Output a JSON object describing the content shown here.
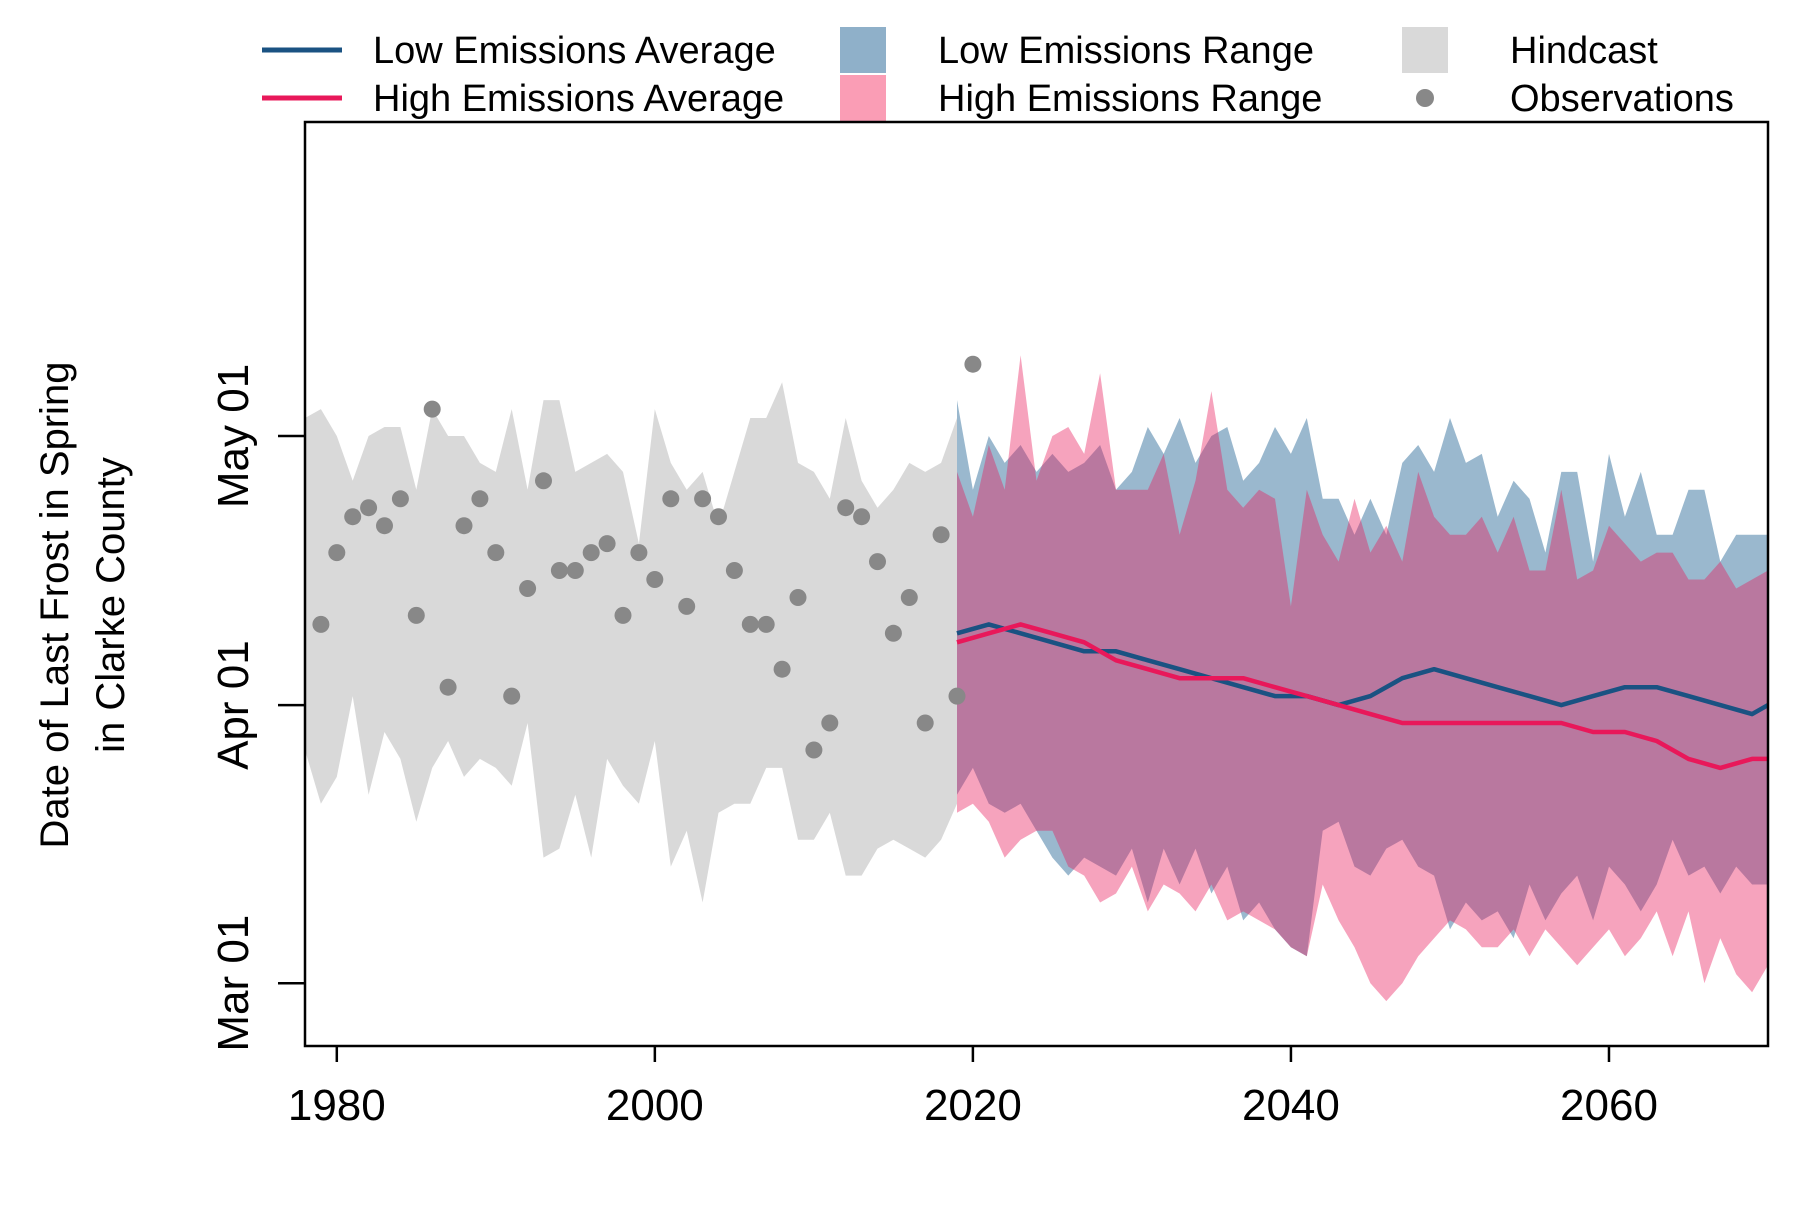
{
  "chart_data": {
    "type": "line",
    "title": "",
    "xlabel": "",
    "ylabel": "Date of Last Frost in Spring\nin Clarke County",
    "xlim": [
      1978,
      2070
    ],
    "ylim": [
      "Feb 22",
      "Jun 05"
    ],
    "x_ticks": [
      1980,
      2000,
      2020,
      2040,
      2060
    ],
    "y_ticks": [
      {
        "label": "Mar 01",
        "day": 60
      },
      {
        "label": "Apr 01",
        "day": 91
      },
      {
        "label": "May 01",
        "day": 121
      }
    ],
    "legend": [
      {
        "label": "Low Emissions Average",
        "kind": "line",
        "color": "#1a5282"
      },
      {
        "label": "High Emissions Average",
        "kind": "line",
        "color": "#e8185a"
      },
      {
        "label": "Low Emissions Range",
        "kind": "area",
        "color": "#8fb0c9"
      },
      {
        "label": "High Emissions Range",
        "kind": "area",
        "color": "#fa9db5"
      },
      {
        "label": "Hindcast",
        "kind": "area",
        "color": "#d9d9d9"
      },
      {
        "label": "Observations",
        "kind": "point",
        "color": "#888888"
      }
    ],
    "legend_position": "top",
    "observations": {
      "x": [
        1979,
        1980,
        1981,
        1982,
        1983,
        1984,
        1985,
        1986,
        1987,
        1988,
        1989,
        1990,
        1991,
        1992,
        1993,
        1994,
        1995,
        1996,
        1997,
        1998,
        1999,
        2000,
        2001,
        2002,
        2003,
        2004,
        2005,
        2006,
        2007,
        2008,
        2009,
        2010,
        2011,
        2012,
        2013,
        2014,
        2015,
        2016,
        2017,
        2018,
        2019,
        2020
      ],
      "y": [
        "Apr 10",
        "Apr 18",
        "Apr 22",
        "Apr 23",
        "Apr 21",
        "Apr 24",
        "Apr 11",
        "May 04",
        "Apr 03",
        "Apr 21",
        "Apr 24",
        "Apr 18",
        "Apr 02",
        "Apr 14",
        "Apr 26",
        "Apr 16",
        "Apr 16",
        "Apr 18",
        "Apr 19",
        "Apr 11",
        "Apr 18",
        "Apr 15",
        "Apr 24",
        "Apr 12",
        "Apr 24",
        "Apr 22",
        "Apr 16",
        "Apr 10",
        "Apr 10",
        "Apr 05",
        "Apr 13",
        "Mar 27",
        "Mar 30",
        "Apr 23",
        "Apr 22",
        "Apr 17",
        "Apr 09",
        "Apr 13",
        "Mar 30",
        "Apr 20",
        "Apr 02",
        "May 09"
      ]
    },
    "hindcast_range": {
      "x": [
        1978,
        1979,
        1980,
        1981,
        1982,
        1983,
        1984,
        1985,
        1986,
        1987,
        1988,
        1989,
        1990,
        1991,
        1992,
        1993,
        1994,
        1995,
        1996,
        1997,
        1998,
        1999,
        2000,
        2001,
        2002,
        2003,
        2004,
        2005,
        2006,
        2007,
        2008,
        2009,
        2010,
        2011,
        2012,
        2013,
        2014,
        2015,
        2016,
        2017,
        2018,
        2019
      ],
      "upper": [
        "May 03",
        "May 04",
        "May 01",
        "Apr 26",
        "May 01",
        "May 02",
        "May 02",
        "Apr 25",
        "May 04",
        "May 01",
        "May 01",
        "Apr 28",
        "Apr 27",
        "May 04",
        "Apr 25",
        "May 05",
        "May 05",
        "Apr 27",
        "Apr 28",
        "Apr 29",
        "Apr 27",
        "Apr 19",
        "May 04",
        "Apr 28",
        "Apr 25",
        "Apr 27",
        "Apr 21",
        "Apr 27",
        "May 03",
        "May 03",
        "May 07",
        "Apr 28",
        "Apr 27",
        "Apr 24",
        "May 03",
        "Apr 26",
        "Apr 23",
        "Apr 25",
        "Apr 28",
        "Apr 27",
        "Apr 28",
        "May 03"
      ],
      "lower": [
        "Mar 27",
        "Mar 21",
        "Mar 24",
        "Apr 02",
        "Mar 22",
        "Mar 29",
        "Mar 26",
        "Mar 19",
        "Mar 25",
        "Mar 28",
        "Mar 24",
        "Mar 26",
        "Mar 25",
        "Mar 23",
        "Mar 30",
        "Mar 15",
        "Mar 16",
        "Mar 22",
        "Mar 15",
        "Mar 26",
        "Mar 23",
        "Mar 21",
        "Mar 28",
        "Mar 14",
        "Mar 18",
        "Mar 10",
        "Mar 20",
        "Mar 21",
        "Mar 21",
        "Mar 25",
        "Mar 25",
        "Mar 17",
        "Mar 17",
        "Mar 20",
        "Mar 13",
        "Mar 13",
        "Mar 16",
        "Mar 17",
        "Mar 16",
        "Mar 15",
        "Mar 17",
        "Mar 21"
      ]
    },
    "series": [
      {
        "name": "Low Emissions Average",
        "color": "#1a5282",
        "x": [
          2019,
          2021,
          2023,
          2025,
          2027,
          2029,
          2031,
          2033,
          2035,
          2037,
          2039,
          2041,
          2043,
          2045,
          2047,
          2049,
          2051,
          2053,
          2055,
          2057,
          2059,
          2061,
          2063,
          2065,
          2067,
          2069,
          2070
        ],
        "y": [
          "Apr 09",
          "Apr 10",
          "Apr 09",
          "Apr 08",
          "Apr 07",
          "Apr 07",
          "Apr 06",
          "Apr 05",
          "Apr 04",
          "Apr 03",
          "Apr 02",
          "Apr 02",
          "Apr 01",
          "Apr 02",
          "Apr 04",
          "Apr 05",
          "Apr 04",
          "Apr 03",
          "Apr 02",
          "Apr 01",
          "Apr 02",
          "Apr 03",
          "Apr 03",
          "Apr 02",
          "Apr 01",
          "Mar 31",
          "Apr 01"
        ]
      },
      {
        "name": "High Emissions Average",
        "color": "#e8185a",
        "x": [
          2019,
          2021,
          2023,
          2025,
          2027,
          2029,
          2031,
          2033,
          2035,
          2037,
          2039,
          2041,
          2043,
          2045,
          2047,
          2049,
          2051,
          2053,
          2055,
          2057,
          2059,
          2061,
          2063,
          2065,
          2067,
          2069,
          2070
        ],
        "y": [
          "Apr 08",
          "Apr 09",
          "Apr 10",
          "Apr 09",
          "Apr 08",
          "Apr 06",
          "Apr 05",
          "Apr 04",
          "Apr 04",
          "Apr 04",
          "Apr 03",
          "Apr 02",
          "Apr 01",
          "Mar 31",
          "Mar 30",
          "Mar 30",
          "Mar 30",
          "Mar 30",
          "Mar 30",
          "Mar 30",
          "Mar 29",
          "Mar 29",
          "Mar 28",
          "Mar 26",
          "Mar 25",
          "Mar 26",
          "Mar 26"
        ]
      }
    ],
    "low_range": {
      "x": [
        2019,
        2020,
        2021,
        2022,
        2023,
        2024,
        2025,
        2026,
        2027,
        2028,
        2029,
        2030,
        2031,
        2032,
        2033,
        2034,
        2035,
        2036,
        2037,
        2038,
        2039,
        2040,
        2041,
        2042,
        2043,
        2044,
        2045,
        2046,
        2047,
        2048,
        2049,
        2050,
        2051,
        2052,
        2053,
        2054,
        2055,
        2056,
        2057,
        2058,
        2059,
        2060,
        2061,
        2062,
        2063,
        2064,
        2065,
        2066,
        2067,
        2068,
        2069,
        2070
      ],
      "upper": [
        "May 05",
        "Apr 25",
        "May 01",
        "Apr 28",
        "Apr 30",
        "Apr 27",
        "Apr 29",
        "Apr 27",
        "Apr 28",
        "Apr 30",
        "Apr 25",
        "Apr 27",
        "May 02",
        "Apr 29",
        "May 03",
        "Apr 28",
        "May 01",
        "May 02",
        "Apr 26",
        "Apr 28",
        "May 02",
        "Apr 29",
        "May 03",
        "Apr 24",
        "Apr 24",
        "Apr 20",
        "Apr 24",
        "Apr 20",
        "Apr 28",
        "Apr 30",
        "Apr 27",
        "May 03",
        "Apr 28",
        "Apr 29",
        "Apr 22",
        "Apr 26",
        "Apr 24",
        "Apr 18",
        "Apr 27",
        "Apr 27",
        "Apr 17",
        "Apr 29",
        "Apr 22",
        "Apr 27",
        "Apr 20",
        "Apr 20",
        "Apr 25",
        "Apr 25",
        "Apr 17",
        "Apr 20",
        "Apr 20",
        "Apr 20"
      ],
      "lower": [
        "Mar 22",
        "Mar 25",
        "Mar 21",
        "Mar 20",
        "Mar 21",
        "Mar 18",
        "Mar 15",
        "Mar 13",
        "Mar 15",
        "Mar 14",
        "Mar 13",
        "Mar 16",
        "Mar 10",
        "Mar 16",
        "Mar 12",
        "Mar 16",
        "Mar 11",
        "Mar 14",
        "Mar 08",
        "Mar 10",
        "Mar 07",
        "Mar 05",
        "Mar 04",
        "Mar 18",
        "Mar 19",
        "Mar 14",
        "Mar 13",
        "Mar 16",
        "Mar 17",
        "Mar 14",
        "Mar 13",
        "Mar 07",
        "Mar 10",
        "Mar 08",
        "Mar 09",
        "Mar 06",
        "Mar 12",
        "Mar 08",
        "Mar 11",
        "Mar 13",
        "Mar 08",
        "Mar 14",
        "Mar 12",
        "Mar 09",
        "Mar 12",
        "Mar 17",
        "Mar 13",
        "Mar 14",
        "Mar 11",
        "Mar 14",
        "Mar 12",
        "Mar 12"
      ]
    },
    "high_range": {
      "x": [
        2019,
        2020,
        2021,
        2022,
        2023,
        2024,
        2025,
        2026,
        2027,
        2028,
        2029,
        2030,
        2031,
        2032,
        2033,
        2034,
        2035,
        2036,
        2037,
        2038,
        2039,
        2040,
        2041,
        2042,
        2043,
        2044,
        2045,
        2046,
        2047,
        2048,
        2049,
        2050,
        2051,
        2052,
        2053,
        2054,
        2055,
        2056,
        2057,
        2058,
        2059,
        2060,
        2061,
        2062,
        2063,
        2064,
        2065,
        2066,
        2067,
        2068,
        2069,
        2070
      ],
      "upper": [
        "Apr 27",
        "Apr 22",
        "Apr 30",
        "Apr 25",
        "May 10",
        "Apr 26",
        "May 01",
        "May 02",
        "Apr 29",
        "May 08",
        "Apr 25",
        "Apr 25",
        "Apr 25",
        "Apr 29",
        "Apr 20",
        "Apr 26",
        "May 06",
        "Apr 25",
        "Apr 23",
        "Apr 25",
        "Apr 24",
        "Apr 12",
        "Apr 25",
        "Apr 20",
        "Apr 17",
        "Apr 24",
        "Apr 18",
        "Apr 21",
        "Apr 17",
        "Apr 27",
        "Apr 22",
        "Apr 20",
        "Apr 20",
        "Apr 22",
        "Apr 18",
        "Apr 22",
        "Apr 16",
        "Apr 16",
        "Apr 25",
        "Apr 15",
        "Apr 16",
        "Apr 21",
        "Apr 19",
        "Apr 17",
        "Apr 18",
        "Apr 18",
        "Apr 15",
        "Apr 15",
        "Apr 17",
        "Apr 14",
        "Apr 15",
        "Apr 16"
      ],
      "lower": [
        "Mar 20",
        "Mar 21",
        "Mar 19",
        "Mar 15",
        "Mar 17",
        "Mar 18",
        "Mar 18",
        "Mar 14",
        "Mar 13",
        "Mar 10",
        "Mar 11",
        "Mar 14",
        "Mar 09",
        "Mar 12",
        "Mar 11",
        "Mar 09",
        "Mar 12",
        "Mar 08",
        "Mar 09",
        "Mar 08",
        "Mar 07",
        "Mar 05",
        "Mar 04",
        "Mar 12",
        "Mar 08",
        "Mar 05",
        "Mar 01",
        "Feb 27",
        "Mar 01",
        "Mar 04",
        "Mar 06",
        "Mar 08",
        "Mar 07",
        "Mar 05",
        "Mar 05",
        "Mar 07",
        "Mar 04",
        "Mar 07",
        "Mar 05",
        "Mar 03",
        "Mar 05",
        "Mar 07",
        "Mar 04",
        "Mar 06",
        "Mar 09",
        "Mar 04",
        "Mar 09",
        "Mar 01",
        "Mar 06",
        "Mar 02",
        "Feb 28",
        "Mar 03"
      ]
    }
  }
}
